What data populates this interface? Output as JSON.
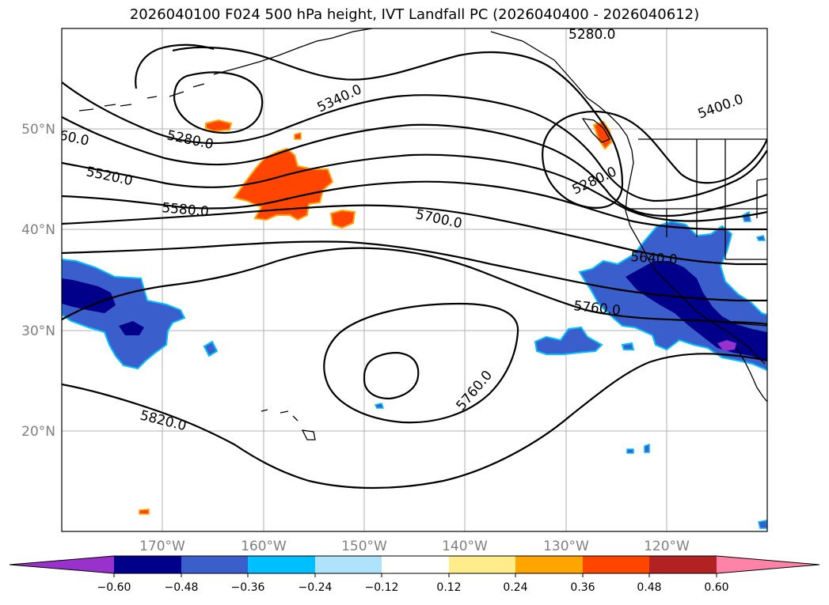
{
  "title": "2026040100 F024 500 hPa height, IVT Landfall PC (2026040400 - 2026040612)",
  "lat_labels": [
    "50°N",
    "40°N",
    "30°N",
    "20°N"
  ],
  "lon_labels": [
    "170°W",
    "160°W",
    "150°W",
    "140°W",
    "130°W",
    "120°W"
  ],
  "contour_labels": [
    "5280.0",
    "5400.0",
    "5340.0",
    "5280.0",
    "5280.0",
    "60.0",
    "5520.0",
    "5580.0",
    "5700.0",
    "5640.0",
    "5760.0",
    "5760.0",
    "5820.0"
  ],
  "colorbar": {
    "ticks": [
      "−0.60",
      "−0.48",
      "−0.36",
      "−0.24",
      "−0.12",
      "0.12",
      "0.24",
      "0.36",
      "0.48",
      "0.60"
    ],
    "colors": [
      "#9932cc",
      "#00008b",
      "#3a5fcd",
      "#00bfff",
      "#aee3fb",
      "#ffffff",
      "#ffec8b",
      "#ffa500",
      "#ff4500",
      "#b22222",
      "#ff83a8"
    ]
  },
  "colors": {
    "positive_fill": "#ff4500",
    "positive_edge": "#ffa500",
    "negative_core": "#00008b",
    "negative_mid": "#3a5fcd",
    "negative_edge": "#00bfff",
    "negative_extreme": "#9932cc"
  }
}
